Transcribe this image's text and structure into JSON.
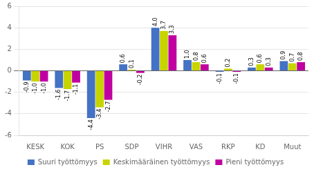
{
  "chart_data": {
    "type": "bar",
    "categories": [
      "KESK",
      "KOK",
      "PS",
      "SDP",
      "VIHR",
      "VAS",
      "RKP",
      "KD",
      "Muut"
    ],
    "series": [
      {
        "name": "Suuri työttömyys",
        "color": "#4472c4",
        "values": [
          -0.9,
          -1.6,
          -4.4,
          0.6,
          4.0,
          1.0,
          -0.1,
          0.3,
          0.9
        ],
        "value_labels": [
          "-0.9",
          "-1.6",
          "-4.4",
          "0.6",
          "4.0",
          "1.0",
          "-0.1",
          "0.3",
          "0.9"
        ]
      },
      {
        "name": "Keskimääräinen työttömyys",
        "color": "#c8d400",
        "values": [
          -1.0,
          -1.7,
          -3.4,
          0.1,
          3.7,
          0.8,
          0.2,
          0.6,
          0.7
        ],
        "value_labels": [
          "-1.0",
          "-1.7",
          "-3.4",
          "0.1",
          "3.7",
          "0.8",
          "0.2",
          "0.6",
          "0.7"
        ]
      },
      {
        "name": "Pieni työttömyys",
        "color": "#c000a0",
        "values": [
          -1.0,
          -1.1,
          -2.7,
          -0.2,
          3.3,
          0.6,
          -0.1,
          0.3,
          0.8
        ],
        "value_labels": [
          "-1.0",
          "-1.1",
          "-2.7",
          "-0.2",
          "3.3",
          "0.6",
          "-0.1",
          "0.3",
          "0.8"
        ]
      }
    ],
    "ylim": [
      -6,
      6
    ],
    "yticks": [
      -6,
      -4,
      -2,
      0,
      2,
      4,
      6
    ],
    "grid": true,
    "legend": "bottom",
    "data_labels": true
  }
}
